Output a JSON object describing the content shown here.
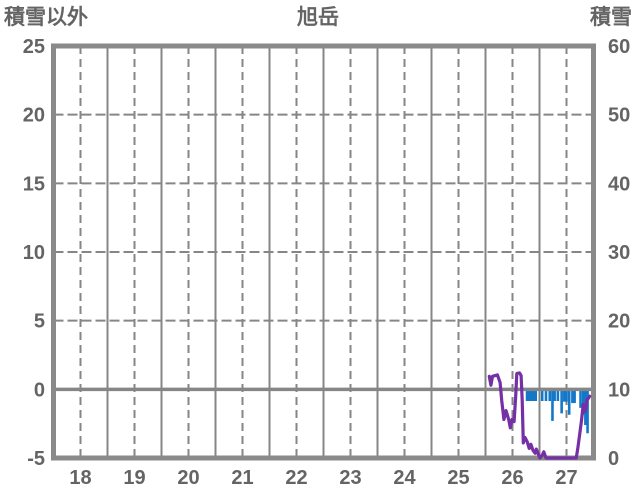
{
  "header": {
    "left_axis_title": "積雪以外",
    "chart_title": "旭岳",
    "right_axis_title": "積雪"
  },
  "chart_data": {
    "type": "line",
    "title": "旭岳",
    "left_axis": {
      "title": "積雪以外",
      "tick_labels": [
        "25",
        "20",
        "15",
        "10",
        "5",
        "0",
        "-5"
      ],
      "tick_values": [
        25,
        20,
        15,
        10,
        5,
        0,
        -5
      ],
      "range": [
        -5,
        25
      ],
      "zero_line": "solid"
    },
    "right_axis": {
      "title": "積雪",
      "tick_labels": [
        "60",
        "50",
        "40",
        "30",
        "20",
        "10",
        "0"
      ],
      "tick_values": [
        60,
        50,
        40,
        30,
        20,
        10,
        0
      ],
      "range": [
        0,
        60
      ]
    },
    "x_axis": {
      "tick_labels": [
        "18",
        "19",
        "20",
        "21",
        "22",
        "23",
        "24",
        "25",
        "26",
        "27"
      ],
      "tick_days": [
        18,
        19,
        20,
        21,
        22,
        23,
        24,
        25,
        26,
        27
      ],
      "range_days": [
        17.5,
        27.5
      ],
      "dashed_gridlines_days": [
        18,
        19,
        20,
        21,
        22,
        23,
        24,
        25,
        26,
        27
      ],
      "solid_gridlines_days": [
        18.5,
        19.5,
        20.5,
        21.5,
        22.5,
        23.5,
        24.5,
        25.5,
        26.5
      ],
      "grid": true
    },
    "series": [
      {
        "name": "積雪以外",
        "type": "line",
        "axis": "left",
        "color": "#7430A4",
        "points": [
          [
            25.57,
            0.95
          ],
          [
            25.6,
            0.3
          ],
          [
            25.63,
            0.95
          ],
          [
            25.72,
            1.05
          ],
          [
            25.77,
            0.5
          ],
          [
            25.8,
            -0.8
          ],
          [
            25.84,
            -2.2
          ],
          [
            25.88,
            -1.55
          ],
          [
            25.93,
            -2.2
          ],
          [
            25.96,
            -2.8
          ],
          [
            25.99,
            -2.2
          ],
          [
            26.03,
            -2.35
          ],
          [
            26.06,
            -0.5
          ],
          [
            26.08,
            1.15
          ],
          [
            26.13,
            1.2
          ],
          [
            26.16,
            1.0
          ],
          [
            26.18,
            -0.8
          ],
          [
            26.2,
            -3.9
          ],
          [
            26.23,
            -3.5
          ],
          [
            26.27,
            -3.8
          ],
          [
            26.31,
            -4.3
          ],
          [
            26.34,
            -4.0
          ],
          [
            26.38,
            -4.45
          ],
          [
            26.42,
            -4.65
          ],
          [
            26.44,
            -4.35
          ],
          [
            26.47,
            -4.65
          ],
          [
            26.51,
            -5.0
          ],
          [
            26.55,
            -4.8
          ],
          [
            26.58,
            -4.55
          ],
          [
            26.62,
            -5.0
          ],
          [
            27.18,
            -5.0
          ],
          [
            27.21,
            -4.3
          ],
          [
            27.25,
            -3.1
          ],
          [
            27.28,
            -2.2
          ],
          [
            27.31,
            -1.1
          ],
          [
            27.35,
            -1.6
          ],
          [
            27.38,
            -0.8
          ],
          [
            27.43,
            -0.5
          ]
        ]
      },
      {
        "name": "積雪",
        "type": "bar-down-from-zero",
        "axis": "left",
        "color": "#1478C8",
        "bar_top_value": 0,
        "bars": [
          [
            26.27,
            -0.85
          ],
          [
            26.31,
            -0.85
          ],
          [
            26.35,
            -0.85
          ],
          [
            26.39,
            -0.85
          ],
          [
            26.43,
            -0.85
          ],
          [
            26.55,
            -0.85
          ],
          [
            26.62,
            -0.85
          ],
          [
            26.69,
            -0.85
          ],
          [
            26.74,
            -2.3
          ],
          [
            26.78,
            -0.85
          ],
          [
            26.84,
            -0.85
          ],
          [
            26.91,
            -1.75
          ],
          [
            26.96,
            -0.9
          ],
          [
            27.0,
            -0.9
          ],
          [
            27.05,
            -1.85
          ],
          [
            27.11,
            -1.0
          ],
          [
            27.15,
            -1.0
          ],
          [
            27.26,
            -1.35
          ],
          [
            27.31,
            -1.85
          ],
          [
            27.35,
            -2.6
          ],
          [
            27.39,
            -3.2
          ]
        ]
      }
    ],
    "colors": {
      "grid": "#868686",
      "border": "#8A8A8A",
      "text": "#646464",
      "line": "#7430A4",
      "bar": "#1478C8",
      "background": "#FFFFFF"
    },
    "legend_position": "none"
  }
}
